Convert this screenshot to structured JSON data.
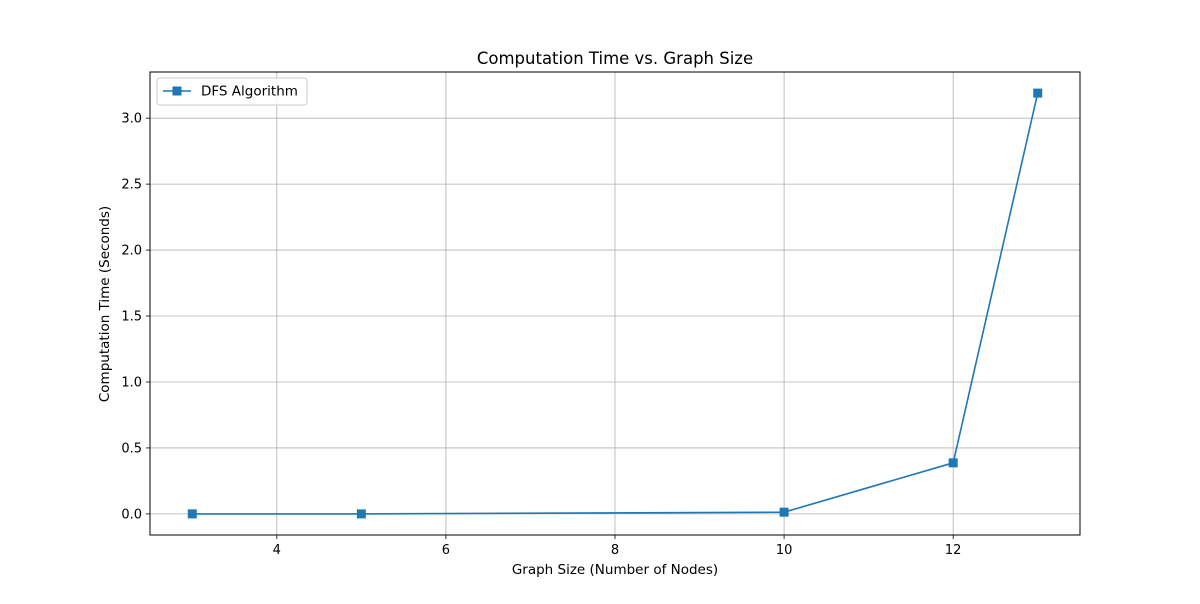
{
  "chart_data": {
    "type": "line",
    "title": "Computation Time vs. Graph Size",
    "xlabel": "Graph Size (Number of Nodes)",
    "ylabel": "Computation Time (Seconds)",
    "xlim": [
      2.5,
      13.5
    ],
    "ylim": [
      -0.16,
      3.35
    ],
    "xticks": [
      4,
      6,
      8,
      10,
      12
    ],
    "xtick_labels": [
      "4",
      "6",
      "8",
      "10",
      "12"
    ],
    "yticks": [
      0.0,
      0.5,
      1.0,
      1.5,
      2.0,
      2.5,
      3.0
    ],
    "ytick_labels": [
      "0.0",
      "0.5",
      "1.0",
      "1.5",
      "2.0",
      "2.5",
      "3.0"
    ],
    "grid": true,
    "legend_position": "top-left",
    "series": [
      {
        "name": "DFS Algorithm",
        "color": "#1f77b4",
        "marker": "square",
        "x": [
          3,
          5,
          10,
          12,
          13
        ],
        "y": [
          0.0,
          0.0,
          0.013,
          0.387,
          3.19
        ]
      }
    ]
  }
}
